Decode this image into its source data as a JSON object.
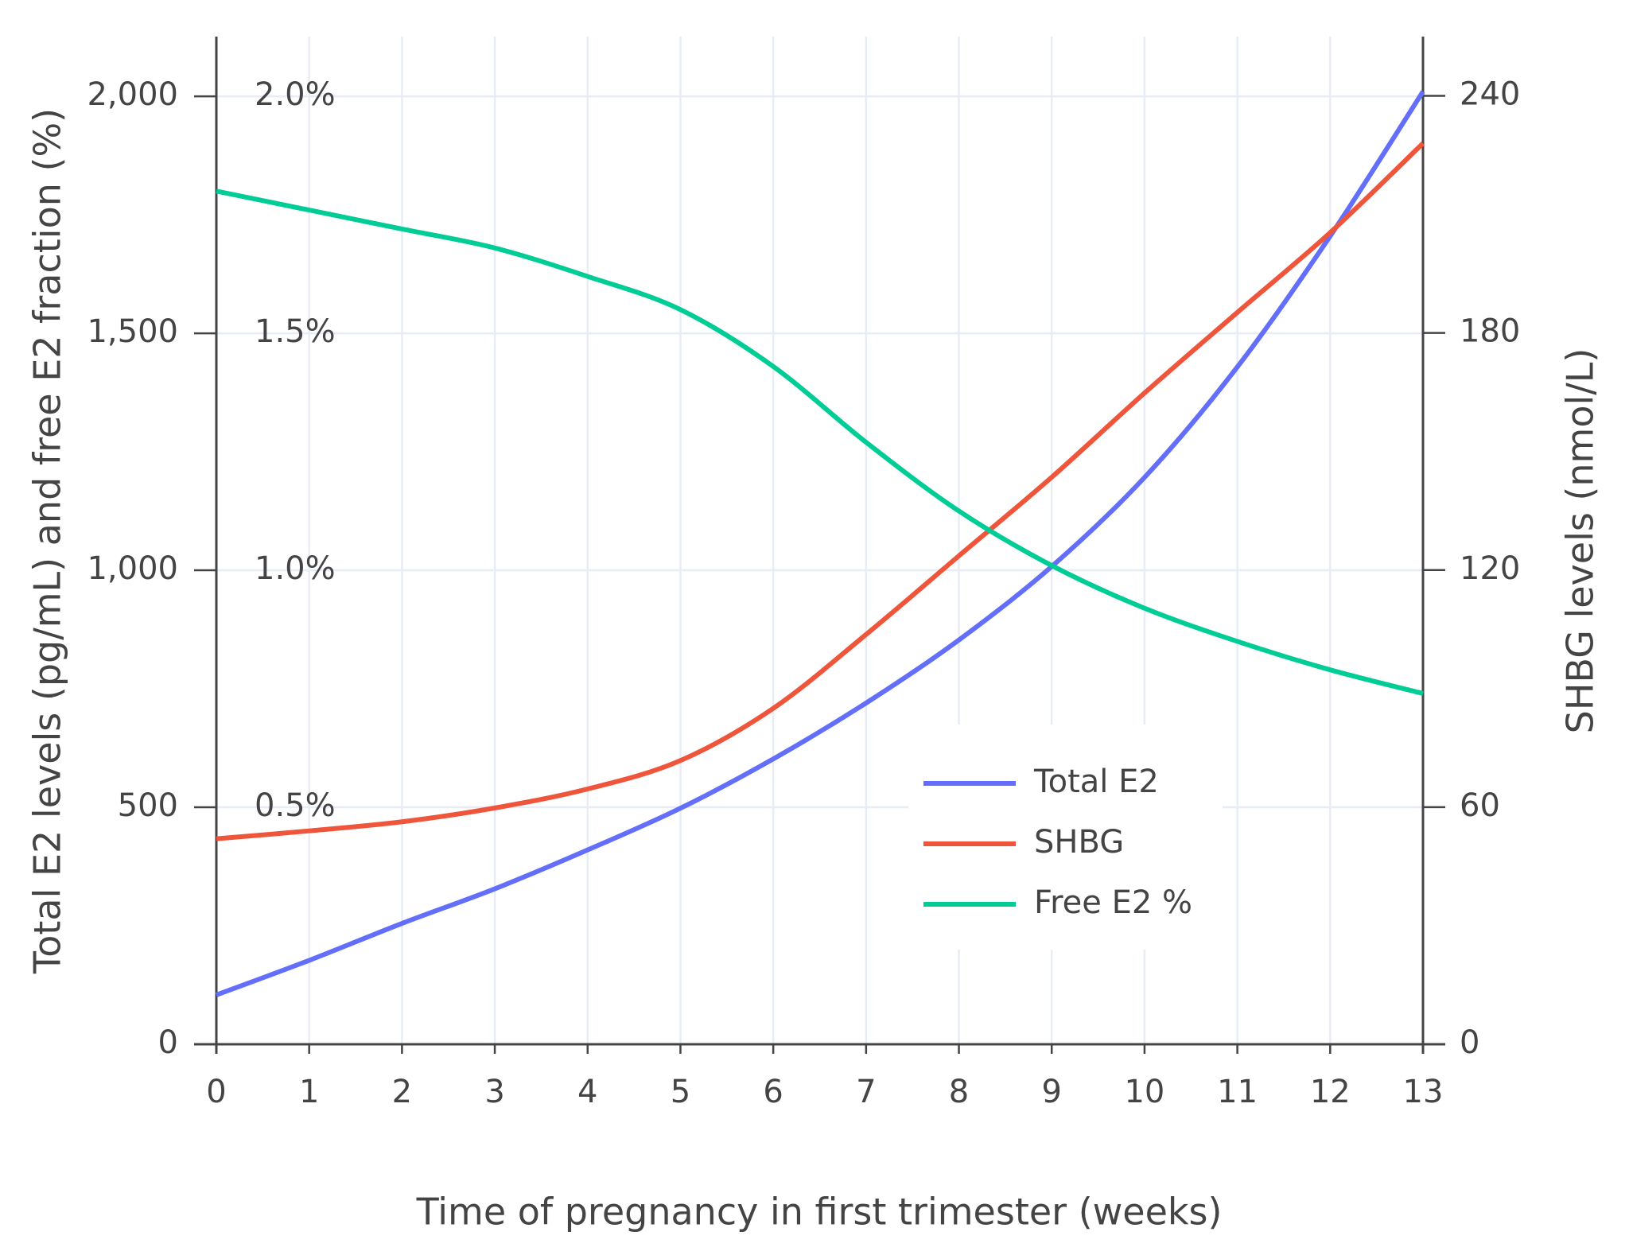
{
  "chart_data": {
    "type": "line",
    "xlabel": "Time of pregnancy in first trimester (weeks)",
    "ylabel": "Total E2 levels (pg/mL) and free E2 fraction (%)",
    "y2label": "SHBG levels (nmol/L)",
    "x": [
      0,
      1,
      2,
      3,
      4,
      5,
      6,
      7,
      8,
      9,
      10,
      11,
      12,
      13
    ],
    "xlim": [
      0,
      13
    ],
    "xticks": [
      0,
      1,
      2,
      3,
      4,
      5,
      6,
      7,
      8,
      9,
      10,
      11,
      12,
      13
    ],
    "ylim": [
      0,
      2126
    ],
    "yticks": [
      0,
      500,
      {
        "value": 1000,
        "label": "1,000"
      },
      {
        "value": 1500,
        "label": "1,500"
      },
      {
        "value": 2000,
        "label": "2,000"
      }
    ],
    "y2lim": [
      0,
      255
    ],
    "y2ticks": [
      0,
      60,
      120,
      180,
      240
    ],
    "y3lim": [
      0,
      2.126
    ],
    "y3ticks": [
      {
        "value": 0.5,
        "label": "0.5%"
      },
      {
        "value": 1.0,
        "label": "1.0%"
      },
      {
        "value": 1.5,
        "label": "1.5%"
      },
      {
        "value": 2.0,
        "label": "2.0%"
      }
    ],
    "grid": true,
    "legend": "lower-right",
    "series": [
      {
        "name": "Total E2",
        "color": "#636efa",
        "axis": "y",
        "values": [
          104,
          177,
          255,
          328,
          410,
          498,
          602,
          720,
          853,
          1008,
          1196,
          1429,
          1705,
          2010
        ]
      },
      {
        "name": "SHBG",
        "color": "#ef553b",
        "axis": "y2",
        "values": [
          52,
          54,
          56.3,
          59.8,
          64.6,
          71.8,
          85,
          103.7,
          123.6,
          143.5,
          164.8,
          185.2,
          205.4,
          228
        ]
      },
      {
        "name": "Free E2 %",
        "color": "#00cc96",
        "axis": "y3",
        "values": [
          1.8,
          1.76,
          1.72,
          1.68,
          1.62,
          1.55,
          1.43,
          1.27,
          1.125,
          1.01,
          0.92,
          0.85,
          0.79,
          0.74
        ]
      }
    ]
  }
}
